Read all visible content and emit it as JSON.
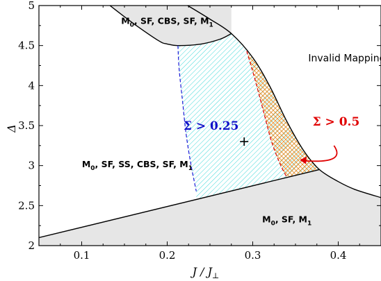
{
  "chart_data": {
    "type": "phase-diagram",
    "xlabel": "J / J",
    "xlabel_sub": "⊥",
    "ylabel": "Δ",
    "xlim": [
      0.05,
      0.45
    ],
    "ylim": [
      2,
      5
    ],
    "xticks": [
      0.1,
      0.2,
      0.3,
      0.4
    ],
    "yticks": [
      2,
      2.5,
      3,
      3.5,
      4,
      4.5,
      5
    ],
    "xtick_labels": [
      "0.1",
      "0.2",
      "0.3",
      "0.4"
    ],
    "ytick_labels": [
      "2",
      "2.5",
      "3",
      "3.5",
      "4",
      "4.5",
      "5"
    ],
    "boundaries": {
      "lower_line": [
        [
          0.05,
          2.1
        ],
        [
          0.378,
          2.95
        ]
      ],
      "top_arc": [
        [
          0.133,
          5.0
        ],
        [
          0.16,
          4.78
        ],
        [
          0.19,
          4.56
        ],
        [
          0.2,
          4.52
        ],
        [
          0.213,
          4.5
        ],
        [
          0.24,
          4.52
        ],
        [
          0.262,
          4.58
        ],
        [
          0.275,
          4.65
        ]
      ],
      "right_curve": [
        [
          0.224,
          5.0
        ],
        [
          0.25,
          4.83
        ],
        [
          0.275,
          4.65
        ],
        [
          0.3,
          4.35
        ],
        [
          0.32,
          3.99
        ],
        [
          0.34,
          3.55
        ],
        [
          0.36,
          3.18
        ],
        [
          0.378,
          2.95
        ],
        [
          0.4,
          2.8
        ],
        [
          0.42,
          2.7
        ],
        [
          0.45,
          2.6
        ]
      ]
    },
    "sigma_025_boundary": [
      [
        0.2125,
        4.5
      ],
      [
        0.214,
        4.2
      ],
      [
        0.218,
        3.8
      ],
      [
        0.222,
        3.4
      ],
      [
        0.228,
        3.0
      ],
      [
        0.234,
        2.68
      ]
    ],
    "sigma_05_boundary": [
      [
        0.293,
        4.43
      ],
      [
        0.302,
        4.1
      ],
      [
        0.312,
        3.7
      ],
      [
        0.322,
        3.3
      ],
      [
        0.332,
        3.02
      ],
      [
        0.34,
        2.85
      ]
    ],
    "marker": {
      "symbol": "+",
      "x": 0.29,
      "y": 3.3
    },
    "region_labels": [
      {
        "main": "M",
        "sub": "0",
        "rest": ", SF, CBS, SF, M",
        "sub2": "1",
        "x": 0.2,
        "y": 4.77
      },
      {
        "main": "M",
        "sub": "0",
        "rest": ", SF, SS, CBS, SF, M",
        "sub2": "1",
        "x": 0.165,
        "y": 2.98
      },
      {
        "main": "M",
        "sub": "0",
        "rest": ", SF, M",
        "sub2": "1",
        "x": 0.34,
        "y": 2.29
      }
    ],
    "annotations": [
      {
        "text": "Invalid Mapping",
        "x": 0.365,
        "y": 4.3
      },
      {
        "text": "Σ > 0.25",
        "x": 0.219,
        "y": 3.45,
        "color": "#1010c8"
      },
      {
        "text": "Σ > 0.5",
        "x": 0.37,
        "y": 3.5,
        "color": "#e00000"
      }
    ],
    "colors": {
      "gray_fill": "#e6e6e6",
      "cyan_hatch": "#3fd8d8",
      "orange_hatch": "#e79230",
      "blue_dashed": "#1a1ad6",
      "red_dashed": "#e00000",
      "arrow": "#e00000"
    }
  }
}
